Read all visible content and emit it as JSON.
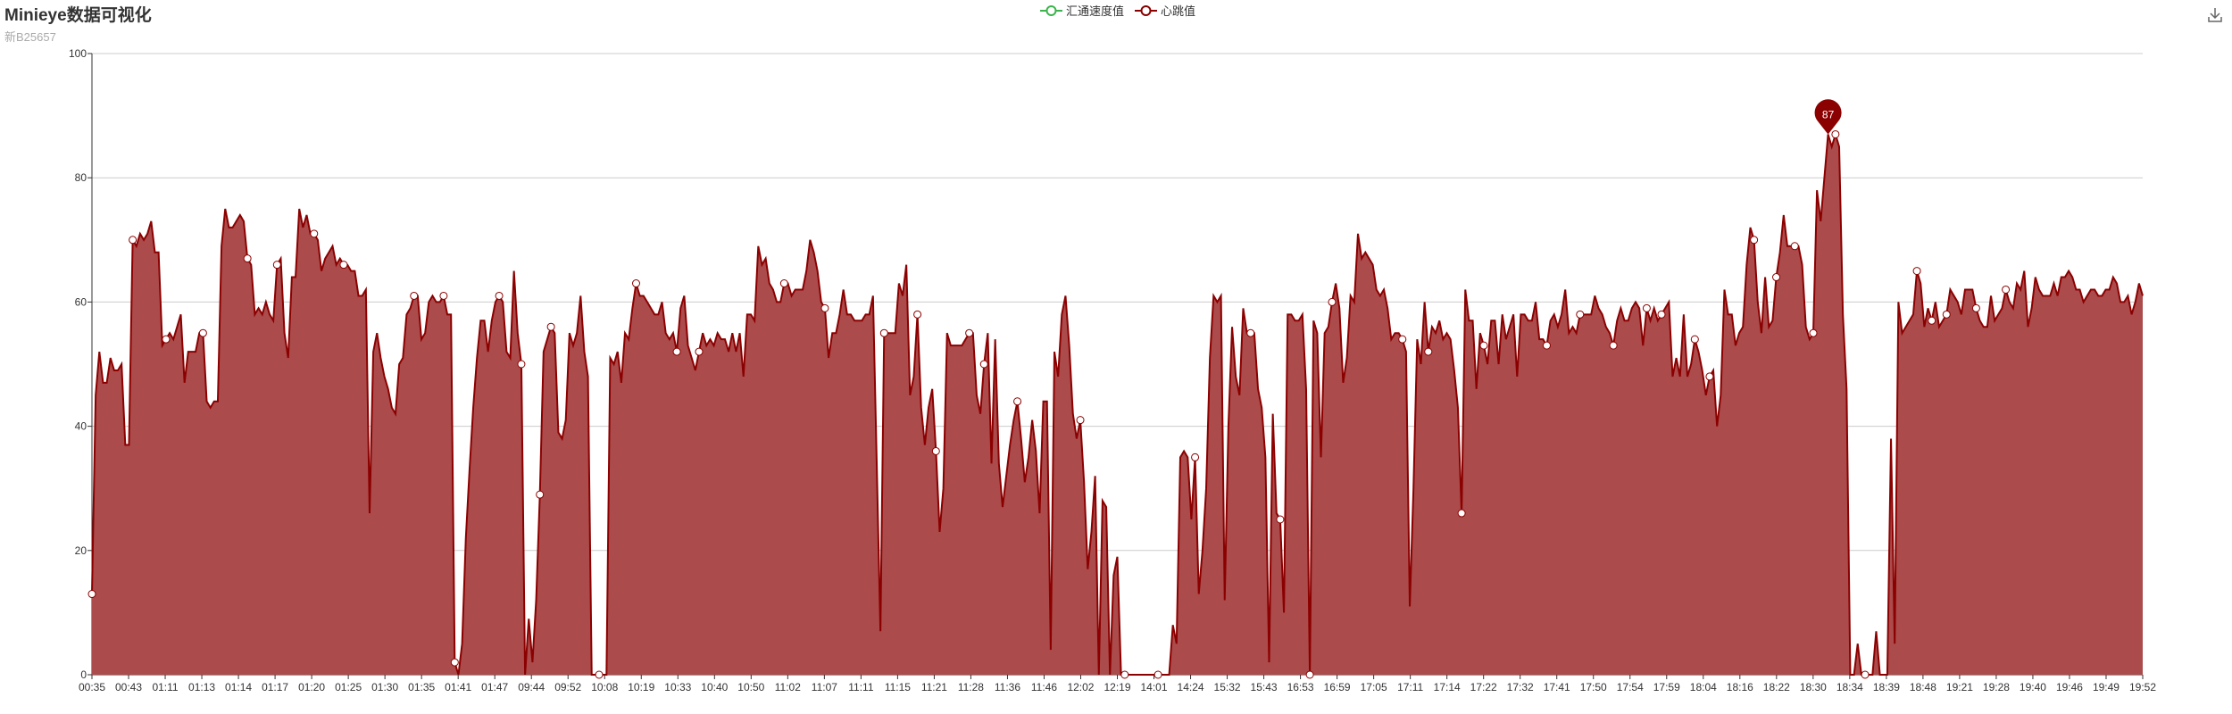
{
  "title": "Minieye数据可视化",
  "subtitle": "新B25657",
  "legend": [
    {
      "name": "汇通速度值",
      "color": "#3cb44b"
    },
    {
      "name": "心跳值",
      "color": "#8b0000"
    }
  ],
  "toolbox": {
    "icon": "download-icon"
  },
  "chart_data": {
    "type": "area",
    "ylim": [
      0,
      100
    ],
    "yticks": [
      0,
      20,
      40,
      60,
      80,
      100
    ],
    "grid": true,
    "legend_position": "top-center",
    "xtick_labels": [
      "00:35",
      "00:43",
      "01:11",
      "01:13",
      "01:14",
      "01:17",
      "01:20",
      "01:25",
      "01:30",
      "01:35",
      "01:41",
      "01:47",
      "09:44",
      "09:52",
      "10:08",
      "10:19",
      "10:33",
      "10:40",
      "10:50",
      "11:02",
      "11:07",
      "11:11",
      "11:15",
      "11:21",
      "11:28",
      "11:36",
      "11:46",
      "12:02",
      "12:19",
      "14:01",
      "14:24",
      "15:32",
      "15:43",
      "16:53",
      "16:59",
      "17:05",
      "17:11",
      "17:14",
      "17:22",
      "17:32",
      "17:41",
      "17:50",
      "17:54",
      "17:59",
      "18:04",
      "18:16",
      "18:22",
      "18:30",
      "18:34",
      "18:39",
      "18:48",
      "19:21",
      "19:28",
      "19:40",
      "19:46",
      "19:49",
      "19:52"
    ],
    "series": [
      {
        "name": "心跳值",
        "color": "#8b0000",
        "fill": "#ab4b4b",
        "values": [
          13,
          45,
          52,
          47,
          47,
          51,
          49,
          49,
          50,
          37,
          37,
          70,
          69,
          71,
          70,
          71,
          73,
          68,
          68,
          53,
          54,
          55,
          54,
          56,
          58,
          47,
          52,
          52,
          52,
          55,
          55,
          44,
          43,
          44,
          44,
          69,
          75,
          72,
          72,
          73,
          74,
          73,
          67,
          66,
          58,
          59,
          58,
          60,
          58,
          57,
          66,
          67,
          55,
          51,
          64,
          64,
          75,
          72,
          74,
          71,
          71,
          70,
          65,
          67,
          68,
          69,
          66,
          67,
          66,
          66,
          65,
          65,
          61,
          61,
          62,
          26,
          52,
          55,
          51,
          48,
          46,
          43,
          42,
          50,
          51,
          58,
          59,
          61,
          61,
          54,
          55,
          60,
          61,
          60,
          60,
          61,
          58,
          58,
          2,
          0,
          5,
          22,
          33,
          43,
          51,
          57,
          57,
          52,
          57,
          60,
          61,
          60,
          52,
          51,
          65,
          55,
          50,
          0,
          9,
          2,
          12,
          29,
          52,
          54,
          56,
          55,
          39,
          38,
          41,
          55,
          53,
          55,
          61,
          52,
          48,
          0,
          0,
          0,
          0,
          0,
          51,
          50,
          52,
          47,
          55,
          54,
          59,
          63,
          61,
          61,
          60,
          59,
          58,
          58,
          60,
          55,
          54,
          55,
          52,
          59,
          61,
          53,
          51,
          49,
          52,
          55,
          53,
          54,
          53,
          55,
          54,
          54,
          52,
          55,
          52,
          55,
          48,
          58,
          58,
          57,
          69,
          66,
          67,
          63,
          62,
          60,
          60,
          63,
          63,
          61,
          62,
          62,
          62,
          65,
          70,
          68,
          65,
          60,
          59,
          51,
          55,
          55,
          58,
          62,
          58,
          58,
          57,
          57,
          57,
          58,
          58,
          61,
          34,
          7,
          55,
          55,
          55,
          55,
          63,
          61,
          66,
          45,
          48,
          58,
          43,
          37,
          43,
          46,
          36,
          23,
          30,
          55,
          53,
          53,
          53,
          53,
          54,
          55,
          55,
          45,
          42,
          50,
          55,
          34,
          54,
          34,
          27,
          32,
          37,
          41,
          44,
          38,
          31,
          35,
          41,
          36,
          26,
          44,
          44,
          4,
          52,
          48,
          58,
          61,
          53,
          42,
          38,
          41,
          31,
          17,
          23,
          32,
          0,
          28,
          27,
          0,
          16,
          19,
          0,
          0,
          0,
          0,
          0,
          0,
          0,
          0,
          0,
          0,
          0,
          0,
          0,
          0,
          8,
          5,
          35,
          36,
          35,
          25,
          35,
          13,
          20,
          30,
          51,
          61,
          60,
          61,
          12,
          40,
          56,
          48,
          45,
          59,
          55,
          55,
          55,
          46,
          43,
          35,
          2,
          42,
          26,
          25,
          10,
          58,
          58,
          57,
          57,
          58,
          46,
          0,
          57,
          55,
          35,
          55,
          56,
          60,
          63,
          59,
          47,
          51,
          61,
          60,
          71,
          67,
          68,
          67,
          66,
          62,
          61,
          62,
          59,
          54,
          55,
          55,
          54,
          52,
          11,
          30,
          54,
          50,
          60,
          52,
          56,
          55,
          57,
          54,
          55,
          54,
          49,
          43,
          26,
          62,
          57,
          57,
          46,
          55,
          53,
          50,
          57,
          57,
          50,
          58,
          54,
          56,
          58,
          48,
          58,
          58,
          57,
          57,
          60,
          54,
          54,
          53,
          57,
          58,
          56,
          58,
          62,
          55,
          56,
          55,
          58,
          58,
          58,
          58,
          61,
          59,
          58,
          56,
          55,
          53,
          57,
          59,
          57,
          57,
          59,
          60,
          59,
          53,
          59,
          57,
          59,
          57,
          58,
          59,
          60,
          48,
          51,
          48,
          58,
          48,
          50,
          54,
          52,
          49,
          45,
          48,
          49,
          40,
          45,
          62,
          58,
          58,
          53,
          55,
          56,
          66,
          72,
          70,
          60,
          55,
          64,
          56,
          57,
          64,
          68,
          74,
          69,
          69,
          69,
          69,
          66,
          56,
          54,
          55,
          78,
          73,
          80,
          87,
          85,
          87,
          85,
          58,
          46,
          0,
          0,
          5,
          0,
          0,
          0,
          0,
          7,
          0,
          0,
          0,
          38,
          5,
          60,
          55,
          56,
          57,
          58,
          65,
          63,
          56,
          59,
          57,
          60,
          56,
          57,
          58,
          62,
          61,
          60,
          58,
          62,
          62,
          62,
          59,
          57,
          56,
          56,
          61,
          57,
          58,
          59,
          62,
          60,
          59,
          63,
          62,
          65,
          56,
          59,
          64,
          62,
          61,
          61,
          61,
          63,
          61,
          64,
          64,
          65,
          64,
          62,
          62,
          60,
          61,
          62,
          62,
          61,
          61,
          62,
          62,
          64,
          63,
          60,
          60,
          61,
          58,
          60,
          63,
          61
        ]
      }
    ],
    "marker_points": [
      0,
      11,
      20,
      30,
      42,
      50,
      60,
      68,
      87,
      95,
      98,
      110,
      116,
      121,
      124,
      137,
      147,
      158,
      164,
      187,
      198,
      214,
      223,
      228,
      237,
      241,
      250,
      267,
      279,
      288,
      298,
      313,
      321,
      329,
      335,
      354,
      361,
      370,
      376,
      393,
      402,
      411,
      420,
      424,
      433,
      437,
      449,
      455,
      460,
      465,
      471,
      479,
      493,
      497,
      501,
      509,
      517
    ],
    "max_point": {
      "label": "87",
      "value": 87
    }
  }
}
